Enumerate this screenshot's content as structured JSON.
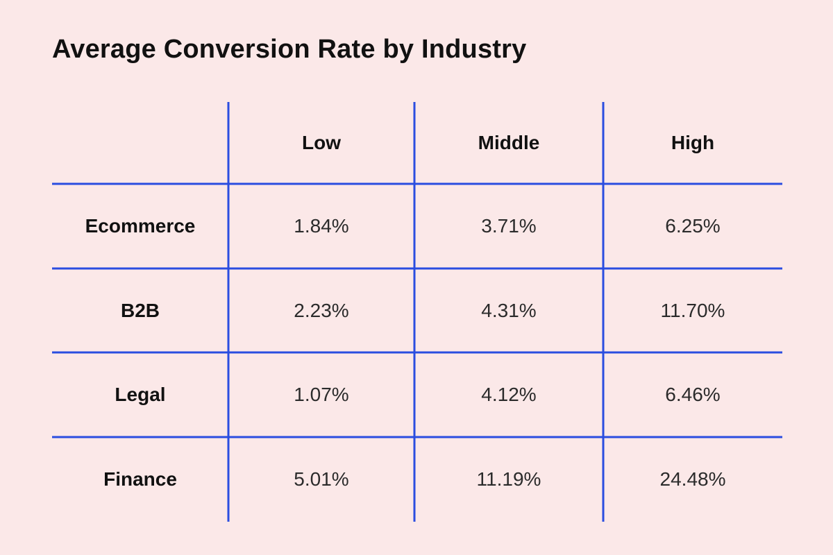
{
  "accent_color": "#2a4de0",
  "background_color": "#fbe8e8",
  "chart_data": {
    "type": "table",
    "title": "Average Conversion Rate by Industry",
    "columns": [
      "Low",
      "Middle",
      "High"
    ],
    "rows": [
      {
        "label": "Ecommerce",
        "values": [
          "1.84%",
          "3.71%",
          "6.25%"
        ]
      },
      {
        "label": "B2B",
        "values": [
          "2.23%",
          "4.31%",
          "11.70%"
        ]
      },
      {
        "label": "Legal",
        "values": [
          "1.07%",
          "4.12%",
          "6.46%"
        ]
      },
      {
        "label": "Finance",
        "values": [
          "5.01%",
          "11.19%",
          "24.48%"
        ]
      }
    ]
  }
}
